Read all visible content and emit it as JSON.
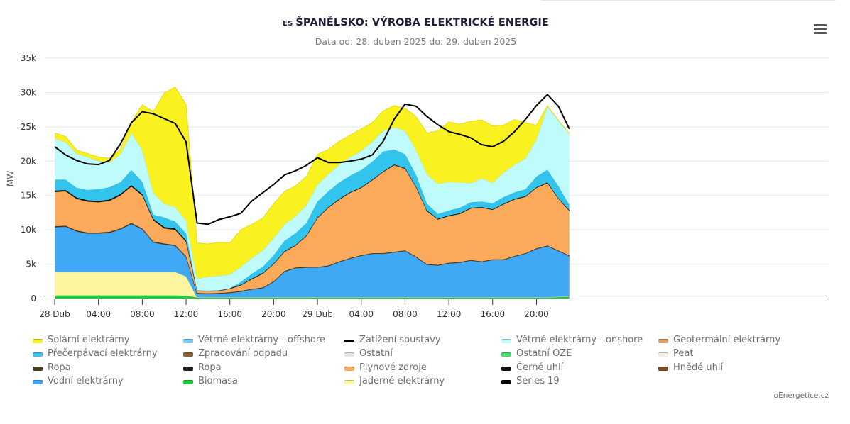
{
  "header": {
    "country_code": "ES",
    "title": "ŠPANĚLSKO: VÝROBA ELEKTRICKÉ ENERGIE",
    "subtitle": "Data od: 28. duben 2025 do: 29. duben 2025",
    "menu_icon": "hamburger-menu-icon"
  },
  "credit": "oEnergetice.cz",
  "chart_data": {
    "type": "area",
    "stacked": true,
    "ylabel": "MW",
    "ylim": [
      0,
      35000
    ],
    "yticks": [
      0,
      5000,
      10000,
      15000,
      20000,
      25000,
      30000,
      35000
    ],
    "ytick_labels": [
      "0",
      "5k",
      "10k",
      "15k",
      "20k",
      "25k",
      "30k",
      "35k"
    ],
    "x_hours": [
      0,
      1,
      2,
      3,
      4,
      5,
      6,
      7,
      8,
      9,
      10,
      11,
      12,
      13,
      14,
      15,
      16,
      17,
      18,
      19,
      20,
      21,
      22,
      23,
      24,
      25,
      26,
      27,
      28,
      29,
      30,
      31,
      32,
      33,
      34,
      35,
      36,
      37,
      38,
      39,
      40,
      41,
      42,
      43,
      44,
      45,
      46,
      47
    ],
    "xticks": [
      0,
      4,
      8,
      12,
      16,
      20,
      24,
      28,
      32,
      36,
      40,
      44
    ],
    "xtick_labels": [
      "28 Dub",
      "04:00",
      "08:00",
      "12:00",
      "16:00",
      "20:00",
      "29 Dub",
      "04:00",
      "08:00",
      "12:00",
      "16:00",
      "20:00"
    ],
    "grid": true,
    "legend_position": "bottom",
    "series": [
      {
        "name": "Biomasa",
        "color": "#22c93a",
        "values": [
          450,
          450,
          450,
          450,
          450,
          450,
          450,
          450,
          450,
          450,
          450,
          450,
          400,
          150,
          150,
          150,
          150,
          150,
          150,
          150,
          150,
          150,
          150,
          150,
          150,
          150,
          150,
          150,
          150,
          150,
          150,
          150,
          150,
          150,
          150,
          150,
          150,
          150,
          150,
          150,
          150,
          150,
          150,
          150,
          150,
          150,
          250,
          300
        ]
      },
      {
        "name": "Jaderné elektrárny",
        "color": "#fdf6a0",
        "values": [
          3400,
          3400,
          3400,
          3400,
          3400,
          3400,
          3400,
          3400,
          3400,
          3400,
          3400,
          3400,
          2800,
          0,
          0,
          0,
          0,
          0,
          0,
          0,
          0,
          0,
          0,
          0,
          0,
          0,
          0,
          0,
          0,
          0,
          0,
          0,
          0,
          0,
          0,
          0,
          0,
          0,
          0,
          0,
          0,
          0,
          0,
          0,
          0,
          0,
          0,
          0
        ]
      },
      {
        "name": "Vodní elektrárny",
        "color": "#3fa9f5",
        "values": [
          6500,
          6600,
          5900,
          5600,
          5600,
          5700,
          6200,
          7000,
          6200,
          4300,
          4000,
          3800,
          2800,
          550,
          500,
          550,
          650,
          850,
          1150,
          1350,
          2250,
          3750,
          4250,
          4350,
          4350,
          4550,
          5150,
          5650,
          6050,
          6350,
          6350,
          6550,
          6750,
          5850,
          4750,
          4650,
          4950,
          5050,
          5350,
          5150,
          5450,
          5450,
          5950,
          6350,
          7050,
          7450,
          6650,
          5850
        ]
      },
      {
        "name": "Ropa",
        "color": "#4a3b1c",
        "values": [
          150,
          150,
          150,
          150,
          150,
          150,
          150,
          150,
          150,
          150,
          150,
          150,
          150,
          100,
          100,
          100,
          100,
          100,
          100,
          100,
          100,
          100,
          100,
          100,
          100,
          100,
          100,
          100,
          100,
          100,
          100,
          100,
          100,
          100,
          100,
          100,
          100,
          100,
          100,
          100,
          100,
          100,
          100,
          100,
          100,
          100,
          100,
          100
        ]
      },
      {
        "name": "Plynové zdroje",
        "color": "#fba95b",
        "values": [
          5000,
          5000,
          4600,
          4500,
          4400,
          4500,
          4800,
          5300,
          4800,
          3100,
          2200,
          2200,
          2100,
          300,
          300,
          300,
          500,
          800,
          1400,
          2000,
          2500,
          2800,
          3200,
          4500,
          7100,
          8400,
          9000,
          9500,
          9800,
          10600,
          11800,
          12600,
          11900,
          10100,
          7700,
          6600,
          6800,
          7000,
          7500,
          7800,
          7200,
          8000,
          8200,
          8200,
          8800,
          9100,
          7500,
          6500
        ]
      },
      {
        "name": "Černé uhlí",
        "color": "#111111",
        "values": [
          200,
          200,
          200,
          200,
          200,
          200,
          200,
          200,
          200,
          200,
          200,
          200,
          200,
          100,
          100,
          100,
          100,
          100,
          100,
          100,
          100,
          100,
          100,
          100,
          100,
          100,
          100,
          100,
          100,
          100,
          100,
          100,
          100,
          100,
          100,
          100,
          100,
          100,
          100,
          100,
          100,
          100,
          100,
          100,
          100,
          100,
          100,
          100
        ]
      },
      {
        "name": "Přečerpávací elektrárny",
        "color": "#32c4ec",
        "values": [
          1600,
          1500,
          1400,
          1500,
          1700,
          1800,
          1700,
          2200,
          1800,
          600,
          1400,
          1000,
          1000,
          0,
          0,
          0,
          0,
          400,
          700,
          900,
          1200,
          1500,
          1700,
          1800,
          2300,
          2300,
          2400,
          2400,
          2500,
          2600,
          2900,
          2200,
          2000,
          1700,
          1000,
          700,
          700,
          800,
          800,
          800,
          850,
          950,
          950,
          1000,
          1550,
          1850,
          1750,
          750
        ]
      },
      {
        "name": "Větrné elektrárny - onshore",
        "color": "#c0fbfb",
        "values": [
          6000,
          5500,
          5000,
          4800,
          4100,
          3600,
          4100,
          5400,
          4600,
          3200,
          2000,
          2100,
          1900,
          1700,
          2000,
          2100,
          2000,
          2200,
          2300,
          2400,
          2500,
          2400,
          2500,
          2600,
          2500,
          2500,
          2600,
          2700,
          2800,
          2900,
          3000,
          3200,
          3400,
          3600,
          4300,
          4400,
          4200,
          3700,
          2800,
          3400,
          3000,
          3600,
          4000,
          4500,
          5400,
          9200,
          9600,
          10400
        ]
      },
      {
        "name": "Solární elektrárny",
        "color": "#faf121",
        "values": [
          800,
          800,
          500,
          500,
          600,
          600,
          700,
          1600,
          6600,
          11800,
          16100,
          17500,
          16900,
          5200,
          4800,
          4900,
          4600,
          5400,
          4900,
          4700,
          5000,
          4800,
          4400,
          4200,
          4400,
          3600,
          3400,
          3200,
          3200,
          2800,
          2900,
          3200,
          3300,
          4900,
          6000,
          7700,
          8700,
          8500,
          9000,
          8500,
          8300,
          6900,
          6600,
          5200,
          2100,
          100,
          0,
          0
        ]
      }
    ],
    "load_series": {
      "name": "Zatížení soustavy",
      "color": "#000000",
      "values": [
        22100,
        20900,
        20100,
        19600,
        19500,
        20100,
        22500,
        25600,
        27200,
        26900,
        26200,
        25500,
        22800,
        11000,
        10800,
        11500,
        11900,
        12400,
        14200,
        15400,
        16600,
        18000,
        18600,
        19400,
        20500,
        19800,
        19800,
        20000,
        20300,
        20900,
        22900,
        26100,
        28300,
        28000,
        26500,
        25300,
        24300,
        23900,
        23400,
        22400,
        22100,
        22900,
        24300,
        26100,
        28100,
        29700,
        28000,
        24700
      ]
    },
    "legend": [
      {
        "label": "Solární elektrárny",
        "color": "#faf121",
        "symbol": "area"
      },
      {
        "label": "Větrné elektrárny - offshore",
        "color": "#7ec8f2",
        "symbol": "area"
      },
      {
        "label": "Zatížení soustavy",
        "color": "#000000",
        "symbol": "line"
      },
      {
        "label": "Větrné elektrárny - onshore",
        "color": "#c0fbfb",
        "symbol": "area"
      },
      {
        "label": "Geotermální elektrárny",
        "color": "#d9a26a",
        "symbol": "area"
      },
      {
        "label": "Přečerpávací elektrárny",
        "color": "#32c4ec",
        "symbol": "area"
      },
      {
        "label": "Zpracování odpadu",
        "color": "#8a6232",
        "symbol": "area"
      },
      {
        "label": "Ostatní",
        "color": "#e6e6e6",
        "symbol": "area"
      },
      {
        "label": "Ostatní OZE",
        "color": "#40e06a",
        "symbol": "area"
      },
      {
        "label": "Peat",
        "color": "#f7f0e4",
        "symbol": "area"
      },
      {
        "label": "Ropa",
        "color": "#4a3b1c",
        "symbol": "area"
      },
      {
        "label": "Ropa",
        "color": "#1e1e1e",
        "symbol": "area"
      },
      {
        "label": "Plynové zdroje",
        "color": "#fba95b",
        "symbol": "area"
      },
      {
        "label": "Černé uhlí",
        "color": "#111111",
        "symbol": "area"
      },
      {
        "label": "Hnědé uhlí",
        "color": "#7a4a1c",
        "symbol": "area"
      },
      {
        "label": "Vodní elektrárny",
        "color": "#3fa9f5",
        "symbol": "area"
      },
      {
        "label": "Biomasa",
        "color": "#22c93a",
        "symbol": "area"
      },
      {
        "label": "Jaderné elektrárny",
        "color": "#fdf6a0",
        "symbol": "area"
      },
      {
        "label": "Series 19",
        "color": "#000000",
        "symbol": "area"
      }
    ]
  }
}
